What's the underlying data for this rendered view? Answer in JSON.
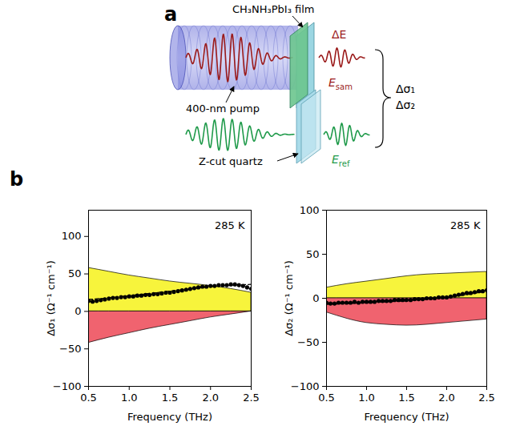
{
  "panel_a": {
    "letter": "a",
    "film_label": "CH₃NH₃PbI₃ film",
    "pump_label": "400-nm pump",
    "quartz_label": "Z-cut quartz",
    "delta_e": "ΔE",
    "e_sam": {
      "symbol": "E",
      "subscript": "sam"
    },
    "e_ref": {
      "symbol": "E",
      "subscript": "ref"
    },
    "outputs": [
      "Δσ₁",
      "Δσ₂"
    ]
  },
  "panel_b": {
    "letter": "b"
  },
  "chart_data": [
    {
      "type": "scatter",
      "xlabel": "Frequency (THz)",
      "ylabel": "Δσ₁ (Ω⁻¹ cm⁻¹)",
      "annotation": "285 K",
      "xlim": [
        0.5,
        2.5
      ],
      "xticks": [
        0.5,
        1,
        1.5,
        2,
        2.5
      ],
      "ylim": [
        -100,
        135
      ],
      "yticks": [
        -100,
        -50,
        0,
        50,
        100
      ],
      "series": [
        {
          "type": "area",
          "color": "#f7f43c",
          "x": [
            0.5,
            0.75,
            1,
            1.25,
            1.5,
            1.75,
            2,
            2.25,
            2.5
          ],
          "values": [
            58,
            53,
            48,
            44,
            40,
            37,
            34,
            30,
            25
          ]
        },
        {
          "type": "area",
          "color": "#f0636f",
          "x": [
            0.5,
            0.75,
            1,
            1.25,
            1.5,
            1.75,
            2,
            2.25,
            2.5
          ],
          "values": [
            -42,
            -35,
            -29,
            -23,
            -18,
            -13,
            -8,
            -4,
            0
          ]
        },
        {
          "type": "line",
          "color": "#000000",
          "line_style": "dashed",
          "x": [
            0.5,
            0.75,
            1,
            1.25,
            1.5,
            1.75,
            2,
            2.25,
            2.5
          ],
          "values": [
            16,
            18,
            21,
            24,
            27,
            30,
            33,
            35,
            36
          ]
        },
        {
          "type": "scatter",
          "color": "#000000",
          "marker": "circle",
          "x": [
            0.5,
            0.55,
            0.6,
            0.65,
            0.7,
            0.75,
            0.8,
            0.85,
            0.9,
            0.95,
            1,
            1.05,
            1.1,
            1.15,
            1.2,
            1.25,
            1.3,
            1.35,
            1.4,
            1.45,
            1.5,
            1.55,
            1.6,
            1.65,
            1.7,
            1.75,
            1.8,
            1.85,
            1.9,
            1.95,
            2,
            2.05,
            2.1,
            2.15,
            2.2,
            2.25,
            2.3,
            2.35,
            2.4,
            2.45,
            2.5
          ],
          "values": [
            14,
            13,
            14,
            15,
            16,
            17,
            18,
            18,
            19,
            19,
            20,
            20,
            21,
            21,
            22,
            22,
            23,
            23,
            24,
            25,
            25,
            26,
            27,
            28,
            29,
            30,
            31,
            32,
            33,
            33,
            34,
            34,
            35,
            35,
            35,
            36,
            36,
            35,
            34,
            32,
            30
          ]
        }
      ]
    },
    {
      "type": "scatter",
      "xlabel": "Frequency (THz)",
      "ylabel": "Δσ₂ (Ω⁻¹ cm⁻¹)",
      "annotation": "285 K",
      "xlim": [
        0.5,
        2.5
      ],
      "xticks": [
        0.5,
        1,
        1.5,
        2,
        2.5
      ],
      "ylim": [
        -100,
        100
      ],
      "yticks": [
        -100,
        -50,
        0,
        50,
        100
      ],
      "series": [
        {
          "type": "area",
          "color": "#f7f43c",
          "x": [
            0.5,
            0.75,
            1,
            1.25,
            1.5,
            1.75,
            2,
            2.25,
            2.5
          ],
          "values": [
            12,
            16,
            19,
            22,
            25,
            27,
            28,
            29,
            30
          ]
        },
        {
          "type": "area",
          "color": "#f0636f",
          "x": [
            0.5,
            0.75,
            1,
            1.25,
            1.5,
            1.75,
            2,
            2.25,
            2.5
          ],
          "values": [
            -16,
            -23,
            -28,
            -30,
            -31,
            -30,
            -28,
            -26,
            -24
          ]
        },
        {
          "type": "line",
          "color": "#000000",
          "line_style": "dashed",
          "x": [
            0.5,
            0.75,
            1,
            1.25,
            1.5,
            1.75,
            2,
            2.25,
            2.5
          ],
          "values": [
            -7,
            -6,
            -5,
            -4,
            -3,
            -1,
            1,
            4,
            8
          ]
        },
        {
          "type": "scatter",
          "color": "#000000",
          "marker": "circle",
          "x": [
            0.5,
            0.55,
            0.6,
            0.65,
            0.7,
            0.75,
            0.8,
            0.85,
            0.9,
            0.95,
            1,
            1.05,
            1.1,
            1.15,
            1.2,
            1.25,
            1.3,
            1.35,
            1.4,
            1.45,
            1.5,
            1.55,
            1.6,
            1.65,
            1.7,
            1.75,
            1.8,
            1.85,
            1.9,
            1.95,
            2,
            2.05,
            2.1,
            2.15,
            2.2,
            2.25,
            2.3,
            2.35,
            2.4,
            2.45,
            2.5
          ],
          "values": [
            -5,
            -6,
            -6,
            -5,
            -5,
            -5,
            -5,
            -4,
            -5,
            -4,
            -4,
            -4,
            -4,
            -3,
            -3,
            -3,
            -3,
            -2,
            -2,
            -2,
            -2,
            -2,
            -1,
            -1,
            -1,
            0,
            0,
            0,
            1,
            1,
            1,
            2,
            3,
            4,
            5,
            6,
            6,
            7,
            8,
            8,
            9
          ]
        }
      ]
    }
  ]
}
